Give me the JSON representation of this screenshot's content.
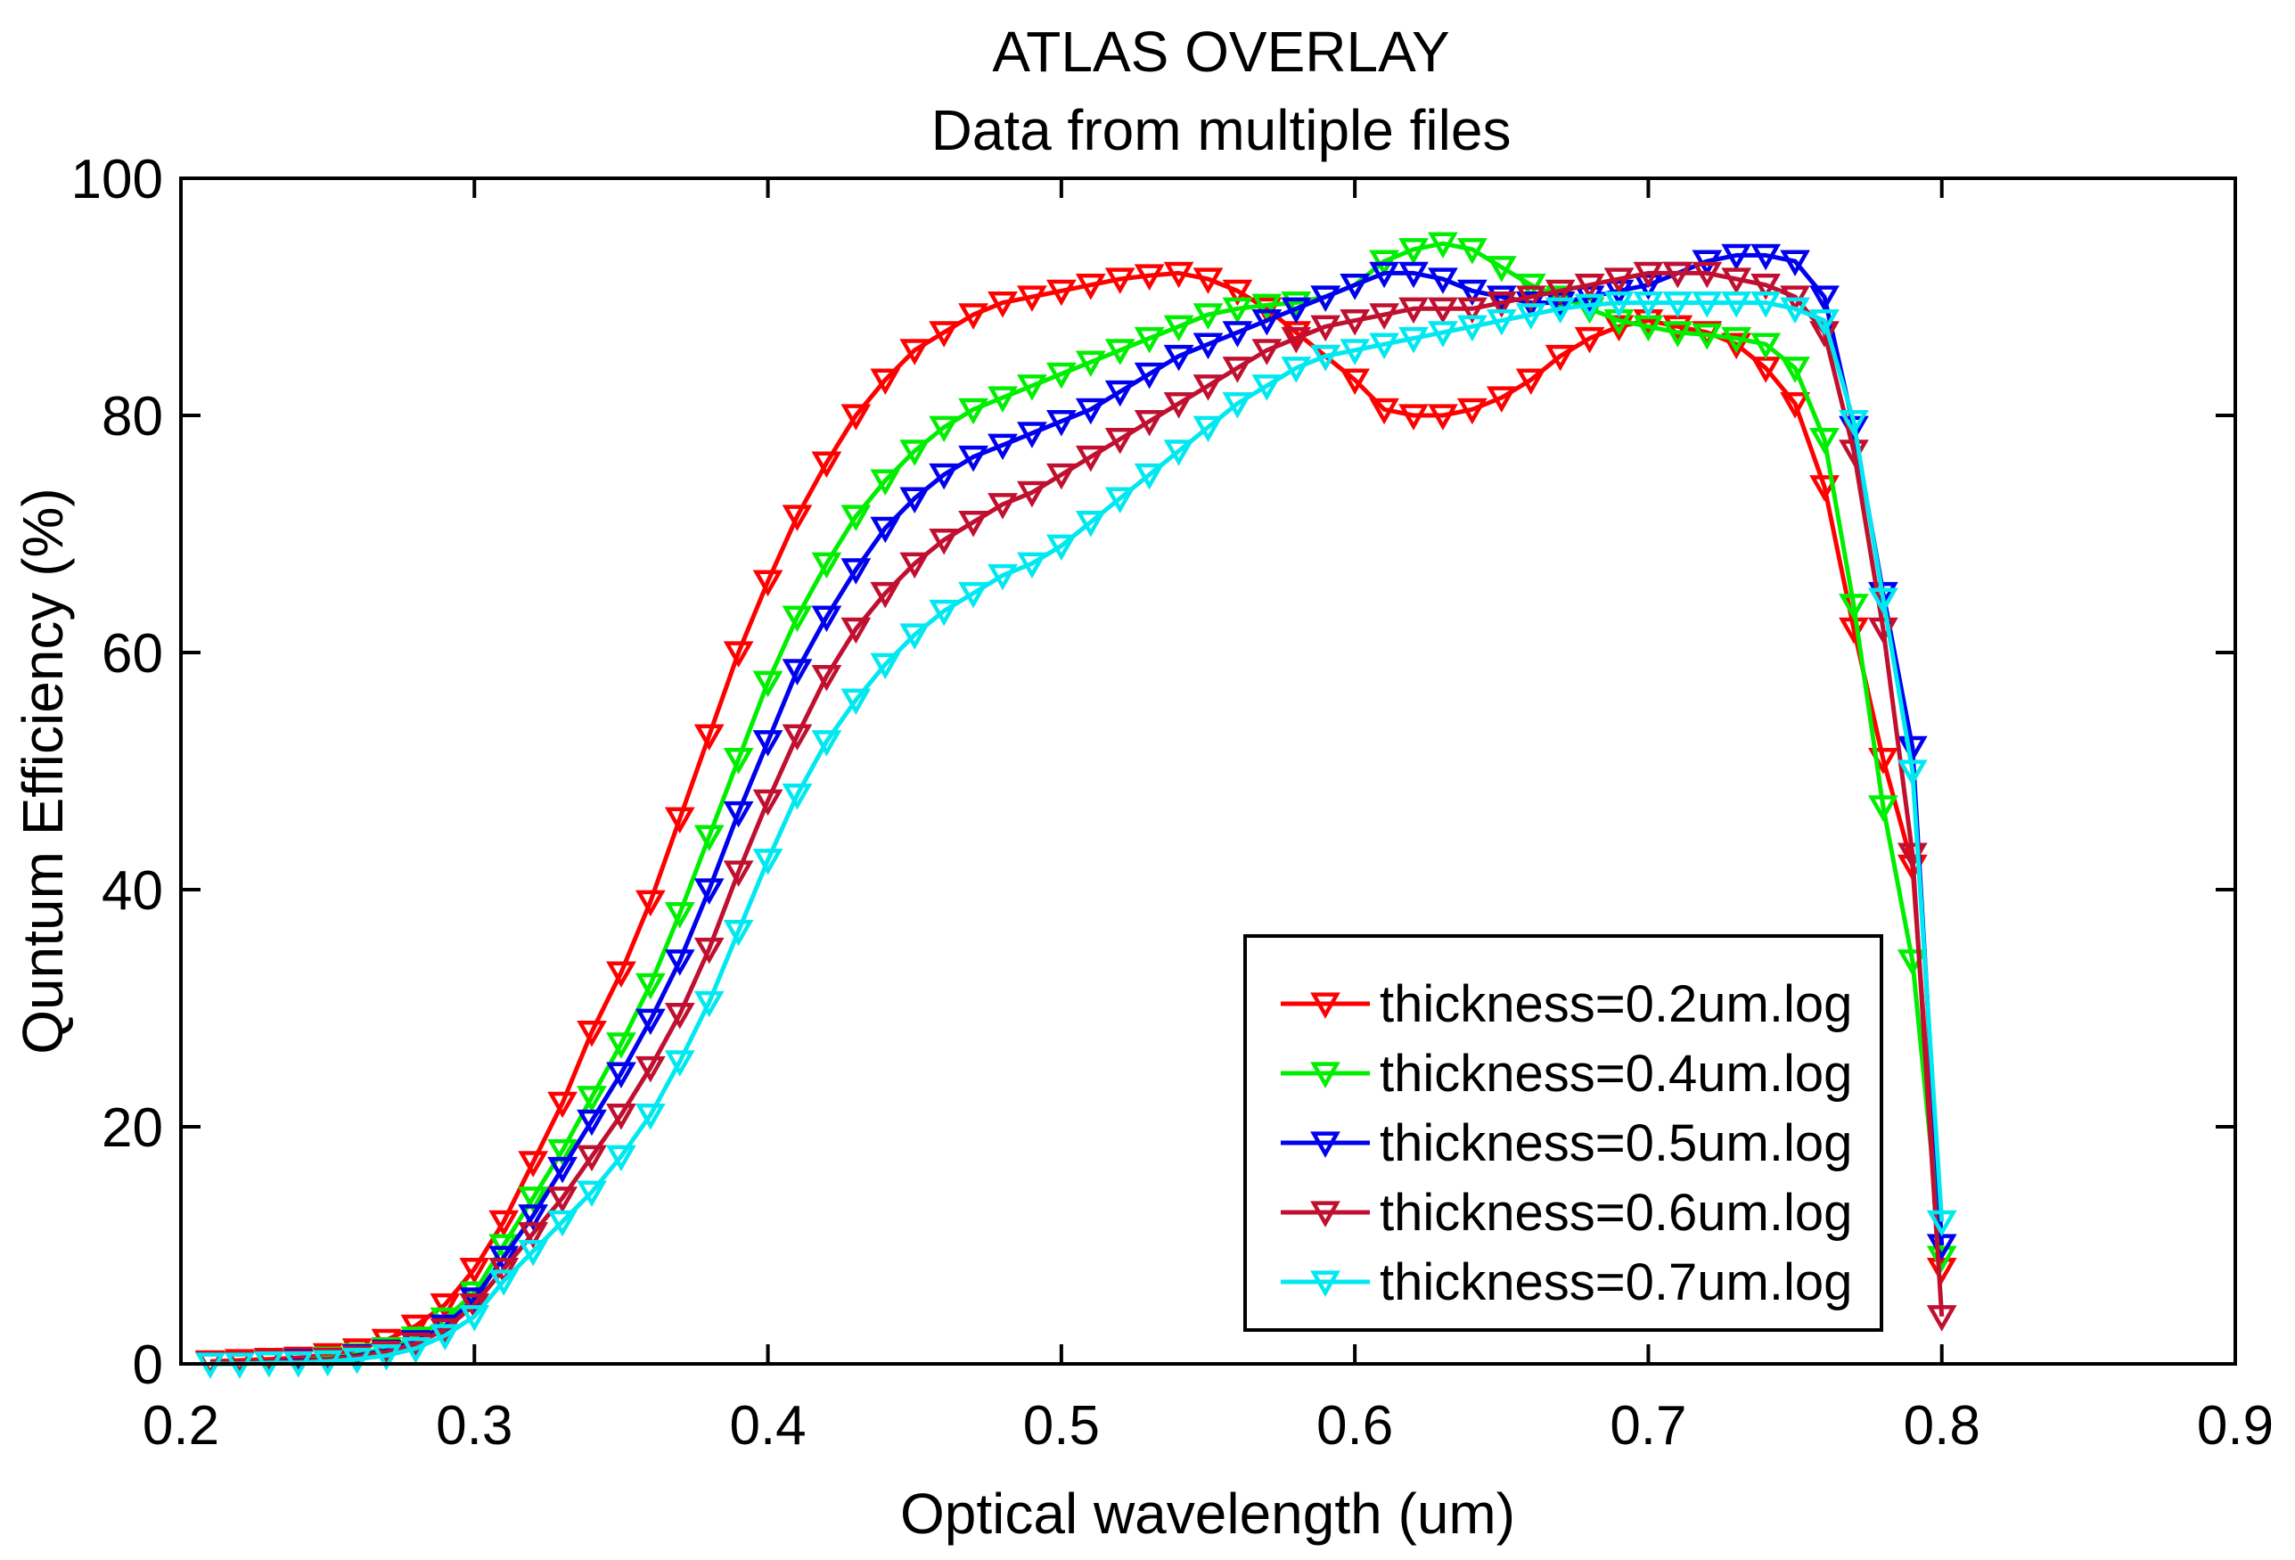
{
  "chart_data": {
    "type": "line",
    "title": "ATLAS OVERLAY",
    "subtitle": "Data from multiple files",
    "xlabel": "Optical wavelength (um)",
    "ylabel": "Quntum Efficiency (%)",
    "xlim": [
      0.2,
      0.9
    ],
    "ylim": [
      0,
      100
    ],
    "xticks": [
      0.2,
      0.3,
      0.4,
      0.5,
      0.6,
      0.7,
      0.8,
      0.9
    ],
    "xtick_labels": [
      "0.2",
      "0.3",
      "0.4",
      "0.5",
      "0.6",
      "0.7",
      "0.8",
      "0.9"
    ],
    "yticks": [
      0,
      20,
      40,
      60,
      80,
      100
    ],
    "ytick_labels": [
      "0",
      "20",
      "40",
      "60",
      "80",
      "100"
    ],
    "grid": false,
    "legend_position": "bottom-right",
    "marker": "down-triangle",
    "x": [
      0.21,
      0.22,
      0.23,
      0.24,
      0.25,
      0.26,
      0.27,
      0.28,
      0.29,
      0.3,
      0.31,
      0.32,
      0.33,
      0.34,
      0.35,
      0.36,
      0.37,
      0.38,
      0.39,
      0.4,
      0.41,
      0.42,
      0.43,
      0.44,
      0.45,
      0.46,
      0.47,
      0.48,
      0.49,
      0.5,
      0.51,
      0.52,
      0.53,
      0.54,
      0.55,
      0.56,
      0.57,
      0.58,
      0.59,
      0.6,
      0.61,
      0.62,
      0.63,
      0.64,
      0.65,
      0.66,
      0.67,
      0.68,
      0.69,
      0.7,
      0.71,
      0.72,
      0.73,
      0.74,
      0.75,
      0.76,
      0.77,
      0.78,
      0.79,
      0.8
    ],
    "series": [
      {
        "name": "thickness=0.2um.log",
        "color": "#ff0000",
        "values": [
          0.2,
          0.3,
          0.4,
          0.5,
          0.8,
          1.2,
          2.0,
          3.2,
          5.0,
          8.0,
          12.0,
          17.0,
          22.0,
          28.0,
          33.0,
          39.0,
          46.0,
          53.0,
          60.0,
          66.0,
          71.5,
          76.0,
          80.0,
          83.0,
          85.5,
          87.0,
          88.5,
          89.5,
          90.0,
          90.5,
          91.0,
          91.5,
          91.8,
          92.0,
          91.5,
          90.5,
          89.0,
          87.0,
          85.0,
          83.0,
          80.5,
          80.0,
          80.0,
          80.5,
          81.5,
          83.0,
          85.0,
          86.5,
          87.5,
          88.0,
          87.5,
          87.0,
          86.0,
          84.0,
          81.0,
          74.0,
          62.0,
          51.0,
          42.0,
          8.0
        ]
      },
      {
        "name": "thickness=0.4um.log",
        "color": "#00ee00",
        "values": [
          0.1,
          0.1,
          0.2,
          0.3,
          0.5,
          0.8,
          1.3,
          2.2,
          3.8,
          6.0,
          10.0,
          14.0,
          18.0,
          22.5,
          27.0,
          32.0,
          38.0,
          44.5,
          51.0,
          57.5,
          63.0,
          67.5,
          71.5,
          74.5,
          77.0,
          79.0,
          80.5,
          81.5,
          82.5,
          83.5,
          84.5,
          85.5,
          86.5,
          87.5,
          88.5,
          89.0,
          89.3,
          89.5,
          90.0,
          91.0,
          93.0,
          94.0,
          94.5,
          94.0,
          92.5,
          91.0,
          90.0,
          89.0,
          88.0,
          87.5,
          87.0,
          86.8,
          86.5,
          86.0,
          84.0,
          78.0,
          64.0,
          47.0,
          34.0,
          9.0
        ]
      },
      {
        "name": "thickness=0.5um.log",
        "color": "#0000ee",
        "values": [
          0.1,
          0.1,
          0.2,
          0.3,
          0.4,
          0.7,
          1.1,
          1.9,
          3.2,
          5.5,
          9.0,
          12.5,
          16.5,
          20.5,
          24.5,
          29.0,
          34.0,
          40.0,
          46.5,
          52.5,
          58.5,
          63.0,
          67.0,
          70.5,
          73.0,
          75.0,
          76.5,
          77.5,
          78.5,
          79.5,
          80.5,
          82.0,
          83.5,
          85.0,
          86.0,
          87.0,
          88.0,
          89.0,
          90.0,
          91.0,
          92.0,
          92.0,
          91.5,
          90.5,
          90.0,
          89.5,
          89.5,
          90.0,
          90.5,
          91.0,
          92.0,
          93.0,
          93.5,
          93.5,
          93.0,
          90.0,
          79.0,
          65.0,
          52.0,
          10.0
        ]
      },
      {
        "name": "thickness=0.6um.log",
        "color": "#c01030",
        "values": [
          0.1,
          0.1,
          0.2,
          0.2,
          0.4,
          0.6,
          1.0,
          1.7,
          2.9,
          5.0,
          8.0,
          11.0,
          14.0,
          17.5,
          21.0,
          25.0,
          29.5,
          35.0,
          41.5,
          47.5,
          53.0,
          58.0,
          62.0,
          65.0,
          67.5,
          69.5,
          71.0,
          72.5,
          73.5,
          75.0,
          76.5,
          78.0,
          79.5,
          81.0,
          82.5,
          84.0,
          85.5,
          86.5,
          87.5,
          88.0,
          88.5,
          89.0,
          89.0,
          89.0,
          89.5,
          90.0,
          90.5,
          91.0,
          91.5,
          92.0,
          92.0,
          92.0,
          91.5,
          91.0,
          90.0,
          87.0,
          77.0,
          62.0,
          43.0,
          4.0
        ]
      },
      {
        "name": "thickness=0.7um.log",
        "color": "#00e8f0",
        "values": [
          0.0,
          0.0,
          0.1,
          0.1,
          0.2,
          0.4,
          0.7,
          1.3,
          2.4,
          4.0,
          7.0,
          9.5,
          12.0,
          14.5,
          17.5,
          21.0,
          25.5,
          30.5,
          36.5,
          42.5,
          48.0,
          52.5,
          56.0,
          59.0,
          61.5,
          63.5,
          65.0,
          66.5,
          67.5,
          69.0,
          71.0,
          73.0,
          75.0,
          77.0,
          79.0,
          81.0,
          82.5,
          84.0,
          85.0,
          85.5,
          86.0,
          86.5,
          87.0,
          87.5,
          88.0,
          88.5,
          89.0,
          89.3,
          89.5,
          89.5,
          89.5,
          89.5,
          89.5,
          89.5,
          89.0,
          88.0,
          79.5,
          64.5,
          50.0,
          12.0
        ]
      }
    ]
  }
}
